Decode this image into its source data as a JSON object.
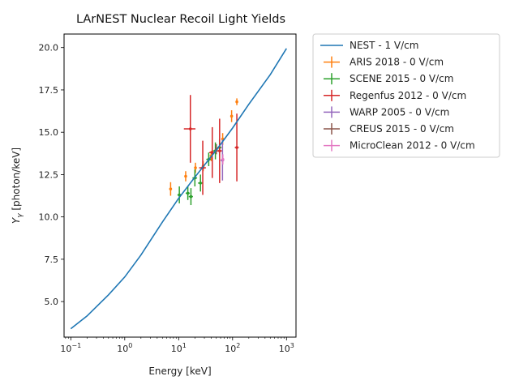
{
  "chart_data": {
    "type": "scatter",
    "title": "LArNEST Nuclear Recoil Light Yields",
    "xlabel": "Energy [keV]",
    "ylabel_base": "Y",
    "ylabel_sub": "γ",
    "ylabel_unit": " [photon/keV]",
    "xscale": "log",
    "xlim": [
      0.075,
      1500
    ],
    "ylim": [
      2.9,
      20.8
    ],
    "grid": false,
    "legend_position": "outside-right",
    "x_tick_labels": [
      {
        "value": 0.1,
        "base": "10",
        "exp": "−1"
      },
      {
        "value": 1,
        "base": "10",
        "exp": "0"
      },
      {
        "value": 10,
        "base": "10",
        "exp": "1"
      },
      {
        "value": 100,
        "base": "10",
        "exp": "2"
      },
      {
        "value": 1000,
        "base": "10",
        "exp": "3"
      }
    ],
    "y_ticks": [
      5.0,
      7.5,
      10.0,
      12.5,
      15.0,
      17.5,
      20.0
    ],
    "y_tick_labels": [
      "5.0",
      "7.5",
      "10.0",
      "12.5",
      "15.0",
      "17.5",
      "20.0"
    ],
    "line_series": {
      "name": "NEST - 1 V/cm",
      "color": "#1f77b4",
      "x": [
        0.1,
        0.2,
        0.5,
        1,
        2,
        5,
        10,
        20,
        50,
        100,
        200,
        500,
        1000
      ],
      "y": [
        3.4,
        4.15,
        5.4,
        6.45,
        7.75,
        9.7,
        11.1,
        12.35,
        13.95,
        15.25,
        16.65,
        18.4,
        19.95
      ]
    },
    "series": [
      {
        "name": "ARIS 2018 - 0 V/cm",
        "color": "#ff7f0e",
        "points": [
          {
            "x": 7.1,
            "y": 11.65,
            "xerr": 0.4,
            "yerr": 0.4
          },
          {
            "x": 13.5,
            "y": 12.4,
            "xerr": 0.6,
            "yerr": 0.3
          },
          {
            "x": 20.5,
            "y": 12.9,
            "xerr": 1.0,
            "yerr": 0.3
          },
          {
            "x": 28.5,
            "y": 13.0,
            "xerr": 1.5,
            "yerr": 0.3
          },
          {
            "x": 40.0,
            "y": 13.6,
            "xerr": 2.0,
            "yerr": 0.3
          },
          {
            "x": 65.5,
            "y": 14.6,
            "xerr": 3.0,
            "yerr": 0.35
          },
          {
            "x": 96.0,
            "y": 15.95,
            "xerr": 5.0,
            "yerr": 0.35
          },
          {
            "x": 120.0,
            "y": 16.8,
            "xerr": 5.0,
            "yerr": 0.2
          }
        ]
      },
      {
        "name": "SCENE 2015 - 0 V/cm",
        "color": "#2ca02c",
        "points": [
          {
            "x": 10.3,
            "y": 11.3,
            "xerr": 0.8,
            "yerr": 0.5
          },
          {
            "x": 14.8,
            "y": 11.4,
            "xerr": 1.3,
            "yerr": 0.4
          },
          {
            "x": 16.9,
            "y": 11.2,
            "xerr": 1.5,
            "yerr": 0.5
          },
          {
            "x": 20.0,
            "y": 12.3,
            "xerr": 2.0,
            "yerr": 0.5
          },
          {
            "x": 25.4,
            "y": 12.0,
            "xerr": 2.5,
            "yerr": 0.5
          },
          {
            "x": 36.1,
            "y": 13.4,
            "xerr": 3.5,
            "yerr": 0.4
          },
          {
            "x": 48.0,
            "y": 13.9,
            "xerr": 4.5,
            "yerr": 0.5
          },
          {
            "x": 57.3,
            "y": 14.1,
            "xerr": 5.0,
            "yerr": 0.5
          }
        ]
      },
      {
        "name": "Regenfus 2012 - 0 V/cm",
        "color": "#d62728",
        "points": [
          {
            "x": 16.5,
            "y": 15.2,
            "xerr": 4.0,
            "yerr": 2.0
          },
          {
            "x": 28.0,
            "y": 12.9,
            "xerr": 4.0,
            "yerr": 1.6
          },
          {
            "x": 42.0,
            "y": 13.8,
            "xerr": 5.0,
            "yerr": 1.5
          },
          {
            "x": 57.5,
            "y": 13.9,
            "xerr": 6.0,
            "yerr": 1.9
          },
          {
            "x": 120.0,
            "y": 14.1,
            "xerr": 10.0,
            "yerr": 2.0
          }
        ]
      },
      {
        "name": "WARP 2005 - 0 V/cm",
        "color": "#9467bd",
        "points": [
          {
            "x": 65.0,
            "y": 13.35,
            "xerr": 5.0,
            "yerr": 1.2
          }
        ]
      },
      {
        "name": "CREUS 2015 - 0 V/cm",
        "color": "#8c564b",
        "points": [
          {
            "x": 50.0,
            "y": 14.0,
            "xerr": 3.0,
            "yerr": 0.3
          }
        ]
      },
      {
        "name": "MicroClean 2012 - 0 V/cm",
        "color": "#e377c2",
        "points": [
          {
            "x": 66.0,
            "y": 13.4,
            "xerr": 3.0,
            "yerr": 0.3
          }
        ]
      }
    ]
  }
}
